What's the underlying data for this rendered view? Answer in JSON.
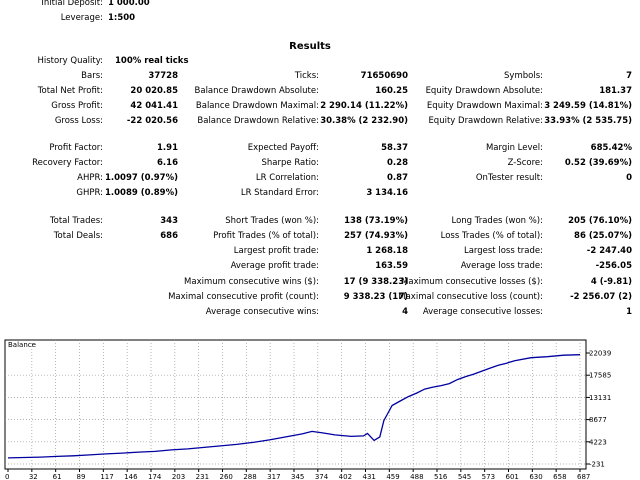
{
  "header": {
    "initial_deposit_label": "Initial Deposit:",
    "initial_deposit_value": "1 000.00",
    "leverage_label": "Leverage:",
    "leverage_value": "1:500"
  },
  "results_title": "Results",
  "col1": [
    {
      "label": "History Quality:",
      "value": "100% real ticks",
      "align": "left"
    },
    {
      "label": "Bars:",
      "value": "37728"
    },
    {
      "label": "Total Net Profit:",
      "value": "20 020.85"
    },
    {
      "label": "Gross Profit:",
      "value": "42 041.41"
    },
    {
      "label": "Gross Loss:",
      "value": "-22 020.56"
    },
    {
      "label": "Profit Factor:",
      "value": "1.91"
    },
    {
      "label": "Recovery Factor:",
      "value": "6.16"
    },
    {
      "label": "AHPR:",
      "value": "1.0097 (0.97%)"
    },
    {
      "label": "GHPR:",
      "value": "1.0089 (0.89%)"
    },
    {
      "label": "Total Trades:",
      "value": "343"
    },
    {
      "label": "Total Deals:",
      "value": "686"
    }
  ],
  "col2": [
    {
      "label": "Ticks:",
      "value": "71650690"
    },
    {
      "label": "Balance Drawdown Absolute:",
      "value": "160.25"
    },
    {
      "label": "Balance Drawdown Maximal:",
      "value": "2 290.14 (11.22%)"
    },
    {
      "label": "Balance Drawdown Relative:",
      "value": "30.38% (2 232.90)"
    },
    {
      "label": "Expected Payoff:",
      "value": "58.37"
    },
    {
      "label": "Sharpe Ratio:",
      "value": "0.28"
    },
    {
      "label": "LR Correlation:",
      "value": "0.87"
    },
    {
      "label": "LR Standard Error:",
      "value": "3 134.16"
    },
    {
      "label": "Short Trades (won %):",
      "value": "138 (73.19%)"
    },
    {
      "label": "Profit Trades (% of total):",
      "value": "257 (74.93%)"
    },
    {
      "label": "Largest profit trade:",
      "value": "1 268.18"
    },
    {
      "label": "Average profit trade:",
      "value": "163.59"
    },
    {
      "label": "Maximum consecutive wins ($):",
      "value": "17 (9 338.23)"
    },
    {
      "label": "Maximal consecutive profit (count):",
      "value": "9 338.23 (17)"
    },
    {
      "label": "Average consecutive wins:",
      "value": "4"
    }
  ],
  "col3": [
    {
      "label": "Symbols:",
      "value": "7"
    },
    {
      "label": "Equity Drawdown Absolute:",
      "value": "181.37"
    },
    {
      "label": "Equity Drawdown Maximal:",
      "value": "3 249.59 (14.81%)"
    },
    {
      "label": "Equity Drawdown Relative:",
      "value": "33.93% (2 535.75)"
    },
    {
      "label": "Margin Level:",
      "value": "685.42%"
    },
    {
      "label": "Z-Score:",
      "value": "0.52 (39.69%)"
    },
    {
      "label": "OnTester result:",
      "value": "0"
    },
    {
      "label": "Long Trades (won %):",
      "value": "205 (76.10%)"
    },
    {
      "label": "Loss Trades (% of total):",
      "value": "86 (25.07%)"
    },
    {
      "label": "Largest loss trade:",
      "value": "-2 247.40"
    },
    {
      "label": "Average loss trade:",
      "value": "-256.05"
    },
    {
      "label": "Maximum consecutive losses ($):",
      "value": "4 (-9.81)"
    },
    {
      "label": "Maximal consecutive loss (count):",
      "value": "-2 256.07 (2)"
    },
    {
      "label": "Average consecutive losses:",
      "value": "1"
    }
  ],
  "chart_data": {
    "type": "line",
    "title": "Balance",
    "series": [
      {
        "name": "",
        "color": "#0000a0"
      }
    ],
    "y_ticks": [
      "22039",
      "17585",
      "13131",
      "8677",
      "4223",
      "-231"
    ],
    "ylim": [
      -231,
      22039
    ],
    "x_ticks": [
      "0",
      "32",
      "61",
      "89",
      "117",
      "146",
      "174",
      "203",
      "231",
      "260",
      "288",
      "317",
      "345",
      "374",
      "402",
      "431",
      "459",
      "488",
      "516",
      "545",
      "573",
      "601",
      "630",
      "658",
      "687"
    ],
    "xlim": [
      0,
      700
    ],
    "x": [
      0,
      20,
      40,
      60,
      80,
      100,
      120,
      140,
      160,
      180,
      200,
      220,
      240,
      260,
      280,
      300,
      320,
      340,
      360,
      372,
      385,
      400,
      420,
      435,
      440,
      448,
      455,
      460,
      465,
      470,
      480,
      490,
      500,
      510,
      520,
      530,
      540,
      550,
      560,
      570,
      580,
      590,
      600,
      610,
      620,
      640,
      660,
      680,
      700
    ],
    "y": [
      1000,
      1080,
      1150,
      1300,
      1420,
      1600,
      1800,
      1950,
      2150,
      2300,
      2600,
      2800,
      3100,
      3400,
      3700,
      4100,
      4600,
      5200,
      5800,
      6300,
      6000,
      5600,
      5300,
      5400,
      5900,
      4500,
      5200,
      8500,
      10000,
      11500,
      12400,
      13300,
      14000,
      14800,
      15200,
      15500,
      15900,
      16700,
      17300,
      17800,
      18400,
      19000,
      19600,
      20000,
      20500,
      21100,
      21300,
      21600,
      21700
    ],
    "grid": true
  }
}
